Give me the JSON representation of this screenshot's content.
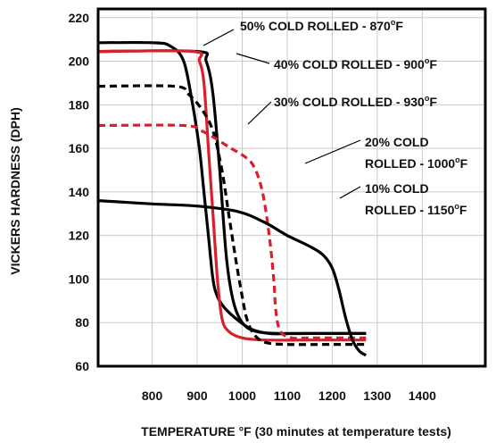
{
  "chart_data": {
    "type": "line",
    "xlabel": "TEMPERATURE °F (30 minutes at temperature tests)",
    "ylabel": "VICKERS HARDNESS (DPH)",
    "xlim": [
      680,
      1540
    ],
    "ylim": [
      60,
      224
    ],
    "x_ticks": [
      800,
      900,
      1000,
      1100,
      1200,
      1300,
      1400
    ],
    "y_ticks": [
      60,
      80,
      100,
      120,
      140,
      160,
      180,
      200,
      220
    ],
    "grid": true,
    "series": [
      {
        "name": "50% COLD ROLLED - 870°F",
        "color": "#000000",
        "dash": false,
        "points": [
          [
            680,
            208.5
          ],
          [
            800,
            208.5
          ],
          [
            840,
            207
          ],
          [
            870,
            200
          ],
          [
            890,
            180
          ],
          [
            905,
            160
          ],
          [
            915,
            140
          ],
          [
            925,
            120
          ],
          [
            935,
            100
          ],
          [
            945,
            92
          ],
          [
            960,
            87
          ],
          [
            985,
            82
          ],
          [
            1020,
            77
          ],
          [
            1060,
            75
          ],
          [
            1100,
            75
          ],
          [
            1150,
            75
          ],
          [
            1200,
            75
          ],
          [
            1275,
            75
          ]
        ]
      },
      {
        "name": "40% COLD ROLLED - 900°F",
        "color": "#000000",
        "dash": false,
        "points": [
          [
            680,
            204.5
          ],
          [
            900,
            204.5
          ],
          [
            920,
            200
          ],
          [
            935,
            185
          ],
          [
            950,
            150
          ],
          [
            965,
            110
          ],
          [
            980,
            90
          ],
          [
            1000,
            80
          ],
          [
            1030,
            76
          ],
          [
            1080,
            75
          ],
          [
            1150,
            75
          ],
          [
            1200,
            75
          ],
          [
            1275,
            75
          ]
        ]
      },
      {
        "name": "40% COLD ROLLED - 900°F",
        "color": "#d8202c",
        "dash": false,
        "points": [
          [
            680,
            204.5
          ],
          [
            890,
            204.5
          ],
          [
            905,
            200
          ],
          [
            915,
            190
          ],
          [
            925,
            160
          ],
          [
            935,
            130
          ],
          [
            945,
            100
          ],
          [
            955,
            82
          ],
          [
            970,
            76
          ],
          [
            1000,
            73
          ],
          [
            1050,
            72
          ],
          [
            1150,
            72
          ],
          [
            1200,
            72
          ],
          [
            1275,
            72
          ]
        ]
      },
      {
        "name": "30% COLD ROLLED - 930°F",
        "color": "#000000",
        "dash": true,
        "points": [
          [
            680,
            188.5
          ],
          [
            850,
            188.5
          ],
          [
            880,
            185
          ],
          [
            910,
            178
          ],
          [
            935,
            168
          ],
          [
            955,
            150
          ],
          [
            970,
            130
          ],
          [
            985,
            110
          ],
          [
            1000,
            92
          ],
          [
            1010,
            82
          ],
          [
            1025,
            75
          ],
          [
            1050,
            71
          ],
          [
            1100,
            70
          ],
          [
            1200,
            70
          ],
          [
            1275,
            70
          ]
        ]
      },
      {
        "name": "20% COLD ROLLED - 1000°F",
        "color": "#d8202c",
        "dash": true,
        "points": [
          [
            680,
            170.5
          ],
          [
            870,
            170.5
          ],
          [
            910,
            168
          ],
          [
            945,
            164
          ],
          [
            975,
            160
          ],
          [
            1000,
            157
          ],
          [
            1025,
            152
          ],
          [
            1045,
            140
          ],
          [
            1060,
            120
          ],
          [
            1070,
            100
          ],
          [
            1075,
            85
          ],
          [
            1085,
            76
          ],
          [
            1110,
            73
          ],
          [
            1150,
            73
          ],
          [
            1275,
            73
          ]
        ]
      },
      {
        "name": "10% COLD ROLLED - 1150°F",
        "color": "#000000",
        "dash": false,
        "points": [
          [
            680,
            136
          ],
          [
            800,
            134.5
          ],
          [
            900,
            133.5
          ],
          [
            990,
            131
          ],
          [
            1050,
            126
          ],
          [
            1100,
            120
          ],
          [
            1150,
            115
          ],
          [
            1180,
            111
          ],
          [
            1200,
            105
          ],
          [
            1215,
            95
          ],
          [
            1230,
            82
          ],
          [
            1245,
            72
          ],
          [
            1260,
            67
          ],
          [
            1275,
            65
          ]
        ]
      }
    ],
    "annotations": [
      {
        "lines": [
          "50% COLD ROLLED - 870°F"
        ]
      },
      {
        "lines": [
          "40% COLD ROLLED - 900°F"
        ]
      },
      {
        "lines": [
          "30% COLD ROLLED - 930°F"
        ]
      },
      {
        "lines": [
          "20% COLD",
          "ROLLED - 1000°F"
        ]
      },
      {
        "lines": [
          "10% COLD",
          "ROLLED - 1150°F"
        ]
      }
    ]
  }
}
